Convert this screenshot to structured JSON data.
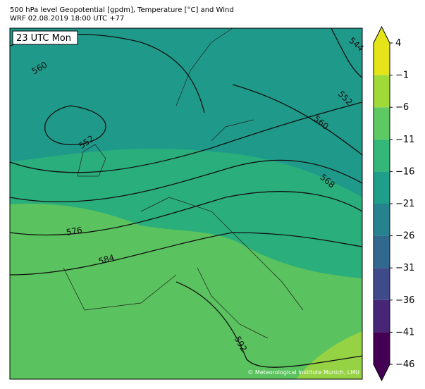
{
  "header": {
    "title": "500 hPa level Geopotential [gpdm], Temperature [°C] and Wind",
    "subtitle": "WRF 02.08.2019 18:00 UTC +77"
  },
  "map": {
    "time_label": "23 UTC Mon",
    "contour_labels": [
      560,
      552,
      544,
      552,
      560,
      568,
      576,
      584,
      592
    ],
    "credit": "© Meteorological Institute Munich, LMU"
  },
  "colorbar": {
    "levels": [
      {
        "value": -46,
        "label": "−46"
      },
      {
        "value": -41,
        "label": "−41"
      },
      {
        "value": -36,
        "label": "−36"
      },
      {
        "value": -31,
        "label": "−31"
      },
      {
        "value": -26,
        "label": "−26"
      },
      {
        "value": -21,
        "label": "−21"
      },
      {
        "value": -16,
        "label": "−16"
      },
      {
        "value": -11,
        "label": "−11"
      },
      {
        "value": -6,
        "label": "−6"
      },
      {
        "value": -1,
        "label": "−1"
      },
      4
    ],
    "colors": [
      "#440154",
      "#482677",
      "#3e4a89",
      "#31688e",
      "#26828e",
      "#1f9e89",
      "#35b779",
      "#5ec962",
      "#a0da39",
      "#e4e419"
    ]
  }
}
